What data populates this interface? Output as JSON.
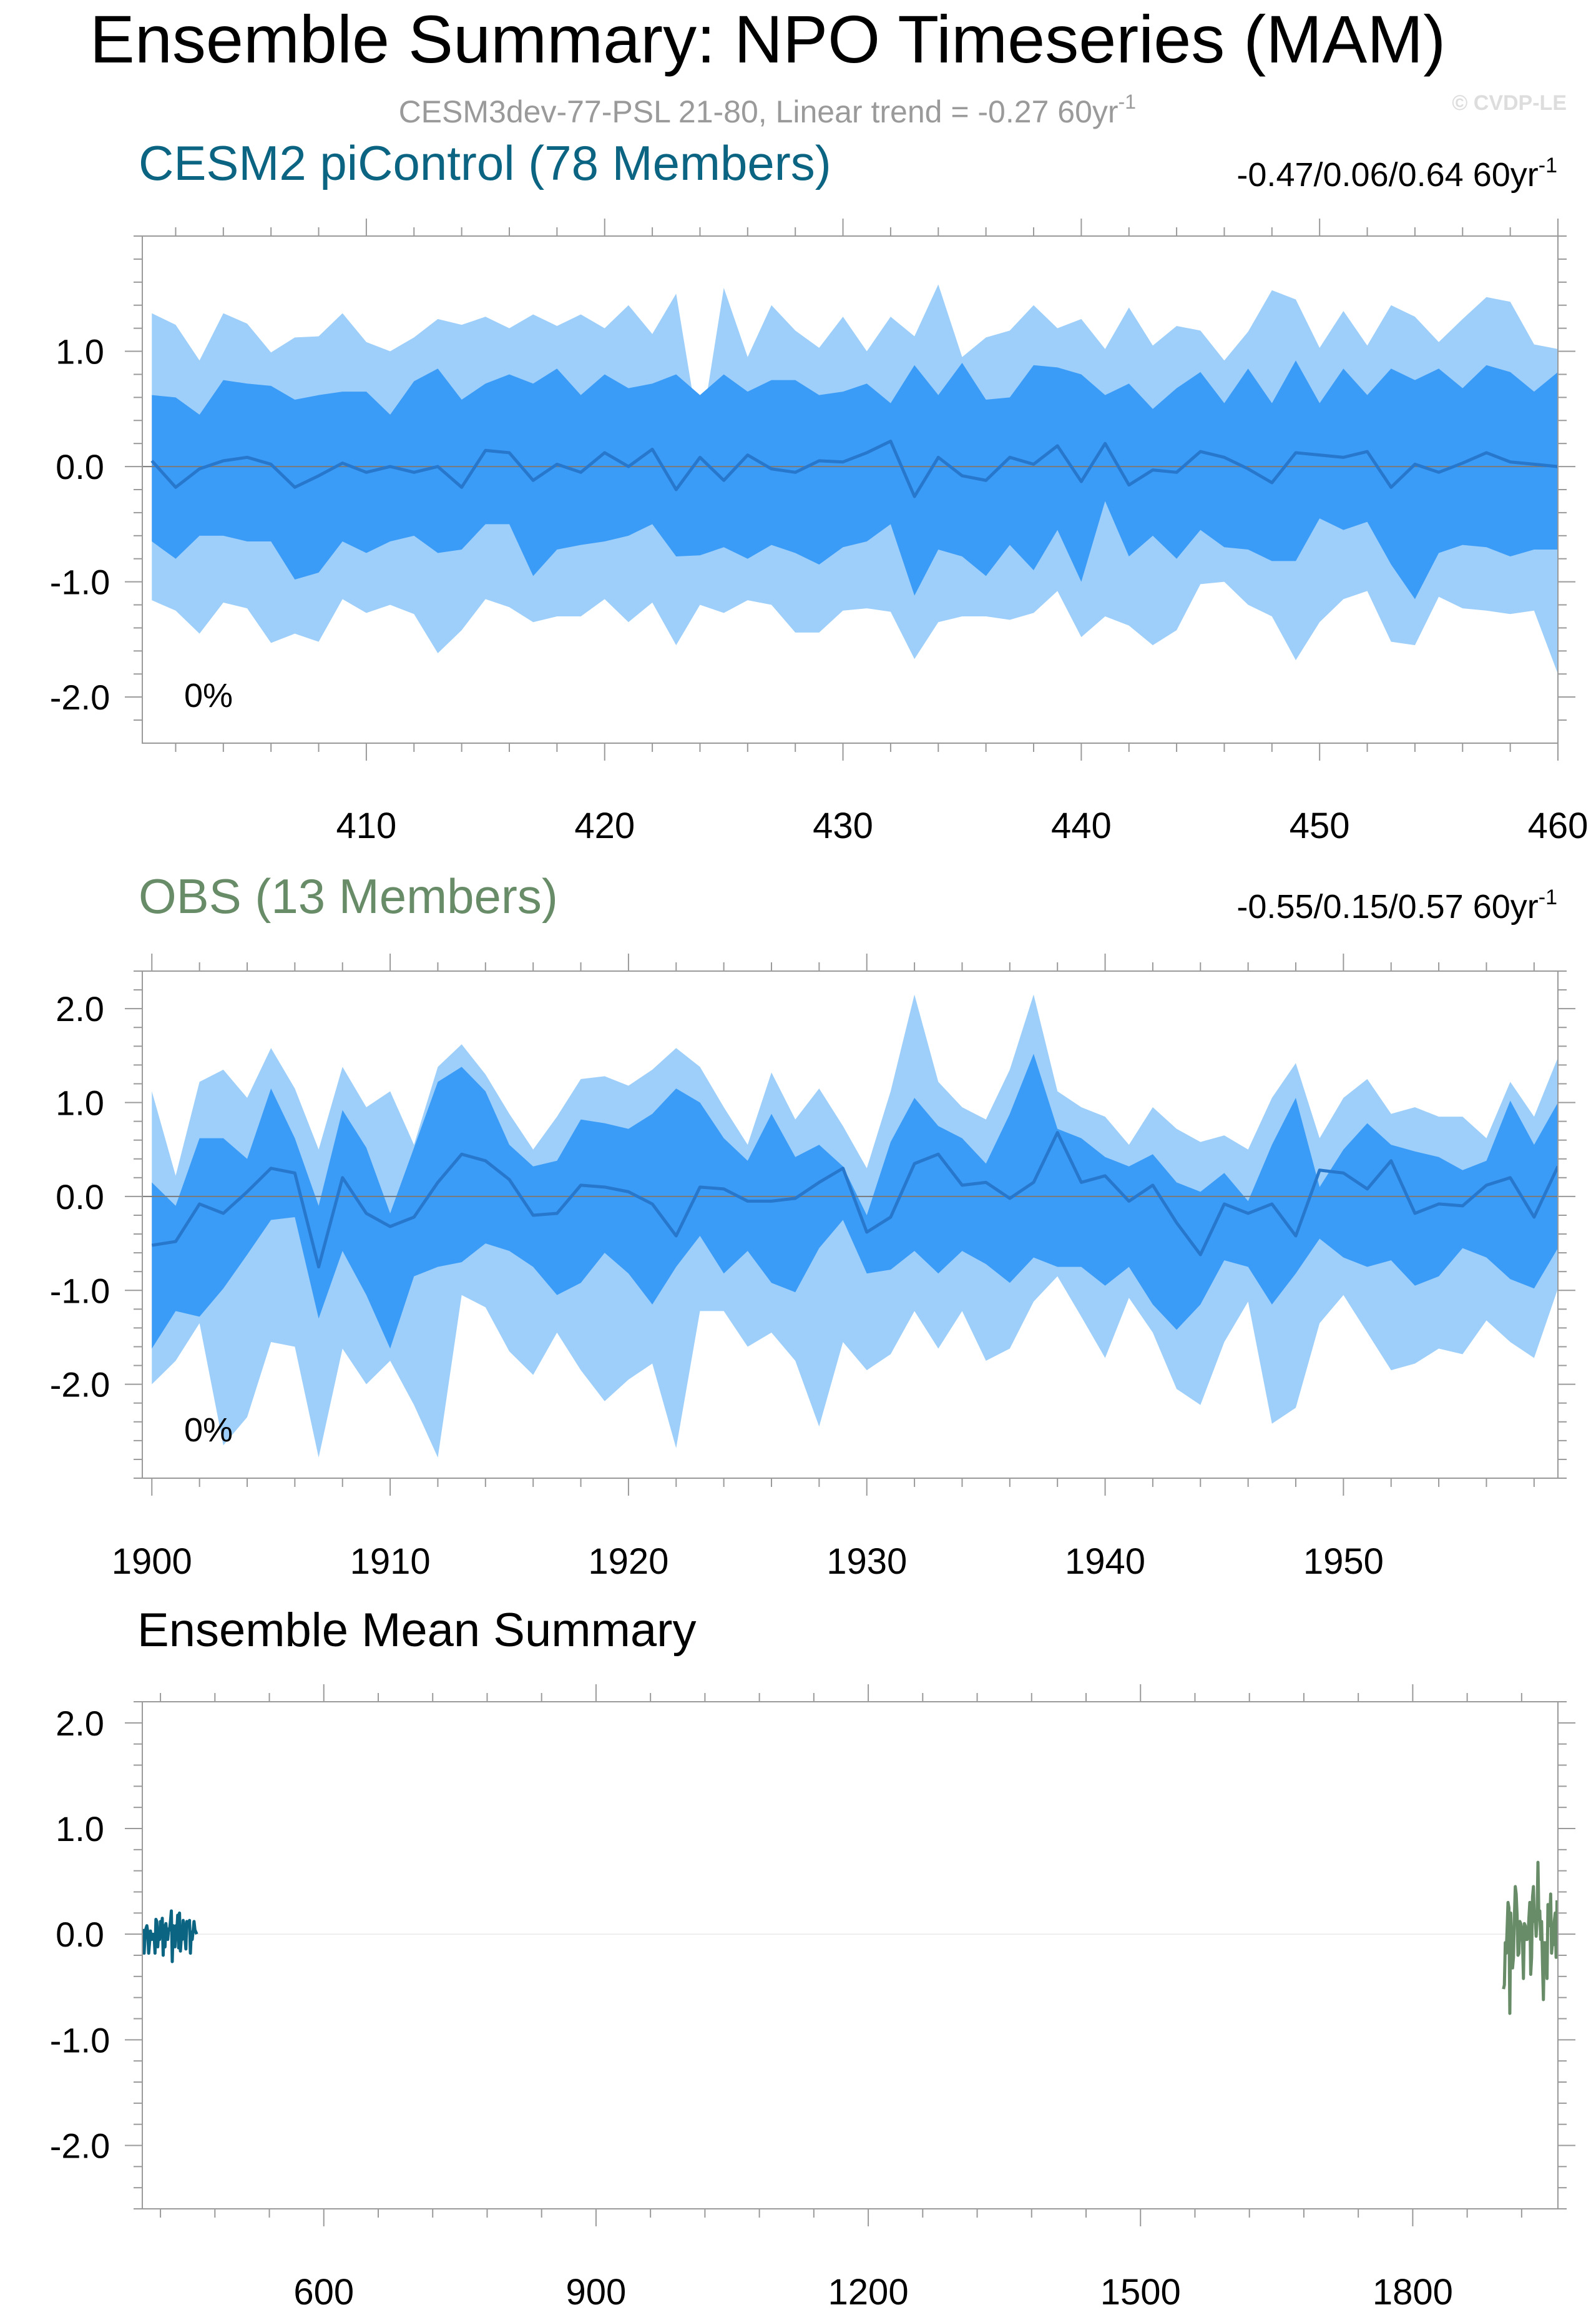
{
  "header": {
    "title": "Ensemble Summary: NPO Timeseries (MAM)",
    "subtitle_main": "CESM3dev-77-PSL 21-80, Linear trend = -0.27 60yr",
    "subtitle_sup": "-1",
    "watermark": "© CVDP-LE"
  },
  "colors": {
    "outer_band": "#9dcffa",
    "inner_band": "#3b9cf7",
    "mean_line": "#2777cc",
    "cesm_label": "#0b6482",
    "obs_label": "#678c67",
    "axis": "#9a9a9a",
    "zero_line": "#7a7a7a"
  },
  "chart_data": [
    {
      "type": "area",
      "name": "panel-cesm",
      "title": "CESM2 piControl (78 Members)",
      "title_color": "#0b6482",
      "trend_text": "-0.47/0.06/0.64 60yr",
      "trend_sup": "-1",
      "percent_label": "0%",
      "xlim": [
        400.6,
        460
      ],
      "ylim": [
        -2.4,
        2.0
      ],
      "yticks": [
        -2.0,
        -1.0,
        0.0,
        1.0
      ],
      "yticklabels": [
        "-2.0",
        "-1.0",
        "0.0",
        "1.0"
      ],
      "xticks": [
        410,
        420,
        430,
        440,
        450,
        460
      ],
      "xticklabels": [
        "410",
        "420",
        "430",
        "440",
        "450",
        "460"
      ],
      "x_start": 401,
      "series": [
        {
          "name": "outer_upper",
          "values": [
            1.33,
            1.23,
            0.92,
            1.33,
            1.24,
            0.99,
            1.12,
            1.13,
            1.33,
            1.08,
            1.0,
            1.12,
            1.28,
            1.23,
            1.3,
            1.2,
            1.32,
            1.22,
            1.32,
            1.2,
            1.4,
            1.15,
            1.5,
            0.25,
            1.55,
            0.95,
            1.4,
            1.18,
            1.03,
            1.3,
            1.0,
            1.3,
            1.13,
            1.58,
            0.95,
            1.12,
            1.18,
            1.4,
            1.2,
            1.28,
            1.02,
            1.38,
            1.05,
            1.22,
            1.18,
            0.92,
            1.17,
            1.53,
            1.45,
            1.03,
            1.35,
            1.05,
            1.4,
            1.3,
            1.08,
            1.28,
            1.47,
            1.43,
            1.06,
            1.02
          ]
        },
        {
          "name": "inner_upper",
          "values": [
            0.62,
            0.6,
            0.45,
            0.75,
            0.72,
            0.7,
            0.58,
            0.62,
            0.65,
            0.65,
            0.45,
            0.74,
            0.85,
            0.58,
            0.72,
            0.8,
            0.72,
            0.85,
            0.62,
            0.8,
            0.68,
            0.72,
            0.8,
            0.62,
            0.8,
            0.65,
            0.75,
            0.75,
            0.62,
            0.65,
            0.72,
            0.55,
            0.88,
            0.62,
            0.9,
            0.58,
            0.6,
            0.88,
            0.86,
            0.8,
            0.62,
            0.72,
            0.5,
            0.68,
            0.82,
            0.55,
            0.85,
            0.55,
            0.92,
            0.55,
            0.85,
            0.62,
            0.85,
            0.75,
            0.85,
            0.68,
            0.88,
            0.82,
            0.65,
            0.82
          ]
        },
        {
          "name": "mean",
          "values": [
            0.05,
            -0.18,
            -0.02,
            0.05,
            0.08,
            0.02,
            -0.18,
            -0.08,
            0.03,
            -0.05,
            0.0,
            -0.05,
            0.0,
            -0.18,
            0.14,
            0.12,
            -0.12,
            0.02,
            -0.05,
            0.12,
            0.0,
            0.15,
            -0.2,
            0.08,
            -0.12,
            0.1,
            -0.02,
            -0.05,
            0.05,
            0.04,
            0.12,
            0.22,
            -0.26,
            0.08,
            -0.08,
            -0.12,
            0.08,
            0.02,
            0.18,
            -0.13,
            0.2,
            -0.16,
            -0.03,
            -0.05,
            0.13,
            0.08,
            -0.02,
            -0.14,
            0.12,
            0.1,
            0.08,
            0.13,
            -0.18,
            0.02,
            -0.05,
            0.03,
            0.12,
            0.04,
            0.02,
            0.0
          ]
        },
        {
          "name": "inner_lower",
          "values": [
            -0.65,
            -0.8,
            -0.6,
            -0.6,
            -0.65,
            -0.65,
            -0.98,
            -0.92,
            -0.65,
            -0.75,
            -0.65,
            -0.6,
            -0.75,
            -0.72,
            -0.5,
            -0.5,
            -0.95,
            -0.72,
            -0.68,
            -0.65,
            -0.6,
            -0.5,
            -0.78,
            -0.77,
            -0.7,
            -0.8,
            -0.68,
            -0.75,
            -0.85,
            -0.7,
            -0.65,
            -0.5,
            -1.12,
            -0.72,
            -0.78,
            -0.95,
            -0.68,
            -0.9,
            -0.55,
            -1.0,
            -0.3,
            -0.78,
            -0.6,
            -0.8,
            -0.55,
            -0.7,
            -0.72,
            -0.82,
            -0.82,
            -0.45,
            -0.55,
            -0.48,
            -0.85,
            -1.15,
            -0.75,
            -0.68,
            -0.7,
            -0.78,
            -0.72,
            -0.72
          ]
        },
        {
          "name": "outer_lower",
          "values": [
            -1.16,
            -1.25,
            -1.45,
            -1.18,
            -1.23,
            -1.53,
            -1.45,
            -1.52,
            -1.15,
            -1.27,
            -1.2,
            -1.28,
            -1.62,
            -1.42,
            -1.15,
            -1.22,
            -1.35,
            -1.3,
            -1.3,
            -1.15,
            -1.35,
            -1.18,
            -1.55,
            -1.2,
            -1.27,
            -1.16,
            -1.2,
            -1.44,
            -1.44,
            -1.25,
            -1.23,
            -1.26,
            -1.67,
            -1.35,
            -1.3,
            -1.3,
            -1.33,
            -1.27,
            -1.08,
            -1.48,
            -1.3,
            -1.38,
            -1.55,
            -1.42,
            -1.02,
            -1.0,
            -1.2,
            -1.3,
            -1.68,
            -1.35,
            -1.15,
            -1.08,
            -1.52,
            -1.55,
            -1.13,
            -1.23,
            -1.25,
            -1.28,
            -1.25,
            -1.8
          ]
        }
      ]
    },
    {
      "type": "area",
      "name": "panel-obs",
      "title": "OBS (13 Members)",
      "title_color": "#678c67",
      "trend_text": "-0.55/0.15/0.57 60yr",
      "trend_sup": "-1",
      "percent_label": "0%",
      "xlim": [
        1899.6,
        1959
      ],
      "ylim": [
        -3.0,
        2.4
      ],
      "yticks": [
        -2.0,
        -1.0,
        0.0,
        1.0,
        2.0
      ],
      "yticklabels": [
        "-2.0",
        "-1.0",
        "0.0",
        "1.0",
        "2.0"
      ],
      "xticks": [
        1900,
        1910,
        1920,
        1930,
        1940,
        1950
      ],
      "xticklabels": [
        "1900",
        "1910",
        "1920",
        "1930",
        "1940",
        "1950"
      ],
      "x_start": 1900,
      "series": [
        {
          "name": "outer_upper",
          "values": [
            1.12,
            0.22,
            1.22,
            1.35,
            1.05,
            1.58,
            1.15,
            0.5,
            1.38,
            0.95,
            1.12,
            0.55,
            1.38,
            1.62,
            1.3,
            0.88,
            0.5,
            0.85,
            1.25,
            1.28,
            1.18,
            1.35,
            1.58,
            1.38,
            0.95,
            0.55,
            1.32,
            0.82,
            1.15,
            0.75,
            0.3,
            1.12,
            2.15,
            1.22,
            0.95,
            0.82,
            1.35,
            2.15,
            1.12,
            0.95,
            0.85,
            0.55,
            0.95,
            0.72,
            0.58,
            0.65,
            0.5,
            1.05,
            1.42,
            0.62,
            1.05,
            1.25,
            0.88,
            0.95,
            0.85,
            0.85,
            0.62,
            1.22,
            0.85,
            1.48
          ]
        },
        {
          "name": "inner_upper",
          "values": [
            0.15,
            -0.1,
            0.62,
            0.62,
            0.4,
            1.15,
            0.62,
            -0.1,
            0.92,
            0.52,
            -0.18,
            0.52,
            1.22,
            1.38,
            1.12,
            0.55,
            0.32,
            0.38,
            0.82,
            0.78,
            0.72,
            0.88,
            1.15,
            1.0,
            0.62,
            0.38,
            0.88,
            0.42,
            0.55,
            0.32,
            -0.2,
            0.58,
            1.05,
            0.75,
            0.62,
            0.35,
            0.88,
            1.52,
            0.72,
            0.62,
            0.42,
            0.32,
            0.45,
            0.15,
            0.05,
            0.25,
            -0.05,
            0.55,
            1.05,
            0.1,
            0.5,
            0.78,
            0.55,
            0.48,
            0.42,
            0.28,
            0.38,
            1.02,
            0.55,
            1.0
          ]
        },
        {
          "name": "mean",
          "values": [
            -0.52,
            -0.48,
            -0.08,
            -0.18,
            0.05,
            0.3,
            0.25,
            -0.75,
            0.2,
            -0.18,
            -0.32,
            -0.22,
            0.15,
            0.45,
            0.38,
            0.18,
            -0.2,
            -0.18,
            0.12,
            0.1,
            0.05,
            -0.08,
            -0.42,
            0.1,
            0.08,
            -0.05,
            -0.05,
            -0.02,
            0.15,
            0.3,
            -0.38,
            -0.22,
            0.35,
            0.45,
            0.12,
            0.15,
            -0.02,
            0.15,
            0.68,
            0.15,
            0.22,
            -0.05,
            0.12,
            -0.28,
            -0.62,
            -0.08,
            -0.18,
            -0.08,
            -0.42,
            0.28,
            0.25,
            0.08,
            0.38,
            -0.18,
            -0.08,
            -0.1,
            0.12,
            0.2,
            -0.22,
            0.32
          ]
        },
        {
          "name": "inner_lower",
          "values": [
            -1.62,
            -1.22,
            -1.28,
            -0.98,
            -0.62,
            -0.25,
            -0.22,
            -1.3,
            -0.58,
            -1.05,
            -1.62,
            -0.85,
            -0.75,
            -0.7,
            -0.5,
            -0.58,
            -0.75,
            -1.05,
            -0.92,
            -0.6,
            -0.82,
            -1.15,
            -0.75,
            -0.42,
            -0.82,
            -0.58,
            -0.92,
            -1.02,
            -0.55,
            -0.25,
            -0.82,
            -0.78,
            -0.58,
            -0.82,
            -0.58,
            -0.72,
            -0.92,
            -0.65,
            -0.75,
            -0.75,
            -0.95,
            -0.75,
            -1.15,
            -1.42,
            -1.15,
            -0.68,
            -0.75,
            -1.15,
            -0.82,
            -0.45,
            -0.65,
            -0.75,
            -0.68,
            -0.95,
            -0.85,
            -0.55,
            -0.65,
            -0.88,
            -0.98,
            -0.55
          ]
        },
        {
          "name": "outer_lower",
          "values": [
            -2.0,
            -1.75,
            -1.35,
            -2.65,
            -2.35,
            -1.55,
            -1.6,
            -2.78,
            -1.62,
            -2.0,
            -1.75,
            -2.22,
            -2.78,
            -1.05,
            -1.18,
            -1.65,
            -1.9,
            -1.45,
            -1.85,
            -2.18,
            -1.95,
            -1.78,
            -2.68,
            -1.22,
            -1.22,
            -1.6,
            -1.45,
            -1.75,
            -2.45,
            -1.55,
            -1.85,
            -1.68,
            -1.22,
            -1.62,
            -1.22,
            -1.75,
            -1.62,
            -1.12,
            -0.85,
            -1.28,
            -1.72,
            -1.08,
            -1.45,
            -2.05,
            -2.22,
            -1.55,
            -1.12,
            -2.42,
            -2.25,
            -1.35,
            -1.05,
            -1.45,
            -1.85,
            -1.78,
            -1.62,
            -1.68,
            -1.32,
            -1.55,
            -1.72,
            -0.98
          ]
        }
      ]
    },
    {
      "type": "line",
      "name": "panel-ensemble-mean",
      "title": "Ensemble Mean Summary",
      "xlim": [
        400,
        1960
      ],
      "ylim": [
        -2.6,
        2.2
      ],
      "yticks": [
        -2.0,
        -1.0,
        0.0,
        1.0,
        2.0
      ],
      "yticklabels": [
        "-2.0",
        "-1.0",
        "0.0",
        "1.0",
        "2.0"
      ],
      "xticks": [
        600,
        900,
        1200,
        1500,
        1800
      ],
      "xticklabels": [
        "600",
        "900",
        "1200",
        "1500",
        "1800"
      ],
      "series": [
        {
          "name": "CESM2 piControl",
          "color": "#0b6482",
          "x_start": 401,
          "values": [
            0.05,
            -0.18,
            -0.02,
            0.05,
            0.08,
            0.02,
            -0.18,
            -0.08,
            0.03,
            -0.05,
            0.0,
            -0.05,
            0.0,
            -0.18,
            0.14,
            0.12,
            -0.12,
            0.02,
            -0.05,
            0.12,
            0.0,
            0.15,
            -0.2,
            0.08,
            -0.12,
            0.1,
            -0.02,
            -0.05,
            0.05,
            0.04,
            0.12,
            0.22,
            -0.26,
            0.08,
            -0.08,
            -0.12,
            0.08,
            0.02,
            0.18,
            -0.13,
            0.2,
            -0.16,
            -0.03,
            -0.05,
            0.13,
            0.08,
            -0.02,
            -0.14,
            0.12,
            0.1,
            0.08,
            0.13,
            -0.18,
            0.02,
            -0.05,
            0.03,
            0.12,
            0.04,
            0.02,
            0.0
          ]
        },
        {
          "name": "OBS",
          "color": "#678c67",
          "x_start": 1900,
          "values": [
            -0.52,
            -0.48,
            -0.08,
            -0.18,
            0.05,
            0.3,
            0.25,
            -0.75,
            0.2,
            -0.18,
            -0.32,
            -0.22,
            0.15,
            0.45,
            0.38,
            0.18,
            -0.2,
            -0.18,
            0.12,
            0.1,
            0.05,
            -0.08,
            -0.42,
            0.1,
            0.08,
            -0.05,
            -0.05,
            -0.02,
            0.15,
            0.3,
            -0.38,
            -0.22,
            0.35,
            0.45,
            0.12,
            0.15,
            -0.02,
            0.15,
            0.68,
            0.15,
            0.22,
            -0.05,
            0.12,
            -0.28,
            -0.62,
            -0.08,
            -0.18,
            -0.08,
            -0.42,
            0.28,
            0.25,
            0.08,
            0.38,
            -0.18,
            -0.08,
            -0.1,
            0.12,
            0.2,
            -0.22,
            0.32
          ]
        }
      ]
    }
  ]
}
